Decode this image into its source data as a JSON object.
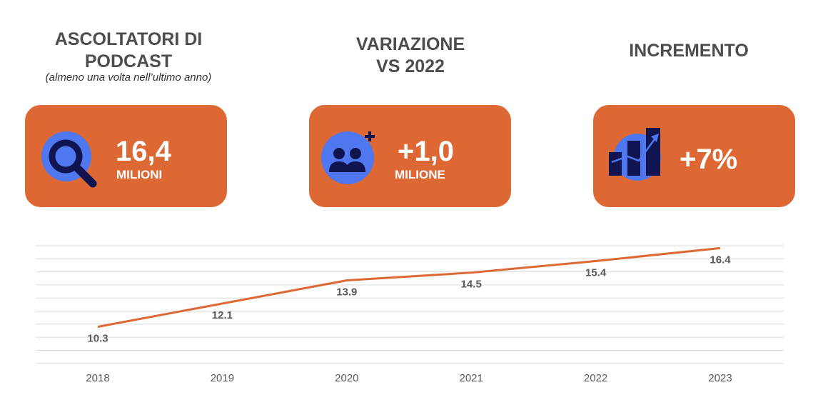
{
  "kpis": [
    {
      "title_lines": [
        "ASCOLTATORI DI",
        "PODCAST"
      ],
      "subtitle": "(almeno una volta nell’ultimo anno)",
      "value": "16,4",
      "unit": "MILIONI",
      "icon": "magnifier-icon"
    },
    {
      "title_lines": [
        "VARIAZIONE",
        "VS 2022"
      ],
      "value": "+1,0",
      "unit": "MILIONE",
      "icon": "add-group-icon"
    },
    {
      "title_lines": [
        "INCREMENTO"
      ],
      "value": "+7%",
      "icon": "growth-chart-icon"
    }
  ],
  "colors": {
    "card": "#dd6833",
    "line": "#dd6833",
    "icon_circle": "#4f78f0",
    "icon_dark": "#10144f",
    "title_text": "#4d4d4d",
    "grid": "#d9d9d9"
  },
  "chart_data": {
    "type": "line",
    "categories": [
      "2018",
      "2019",
      "2020",
      "2021",
      "2022",
      "2023"
    ],
    "values": [
      10.3,
      12.1,
      13.9,
      14.5,
      15.4,
      16.4
    ],
    "value_labels": [
      "10.3",
      "12.1",
      "13.9",
      "14.5",
      "15.4",
      "16.4"
    ],
    "title": "",
    "xlabel": "",
    "ylabel": "",
    "grid": true,
    "legend": "none"
  }
}
